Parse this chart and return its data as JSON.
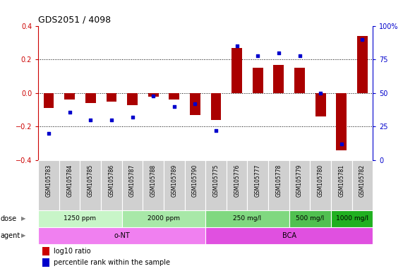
{
  "title": "GDS2051 / 4098",
  "samples": [
    "GSM105783",
    "GSM105784",
    "GSM105785",
    "GSM105786",
    "GSM105787",
    "GSM105788",
    "GSM105789",
    "GSM105790",
    "GSM105775",
    "GSM105776",
    "GSM105777",
    "GSM105778",
    "GSM105779",
    "GSM105780",
    "GSM105781",
    "GSM105782"
  ],
  "log10_ratio": [
    -0.09,
    -0.04,
    -0.06,
    -0.05,
    -0.07,
    -0.02,
    -0.04,
    -0.13,
    -0.16,
    0.27,
    0.15,
    0.17,
    0.15,
    -0.14,
    -0.34,
    0.34
  ],
  "percentile_rank": [
    20,
    36,
    30,
    30,
    32,
    48,
    40,
    42,
    22,
    85,
    78,
    80,
    78,
    50,
    12,
    90
  ],
  "dose_groups": [
    {
      "label": "1250 ppm",
      "start": 0,
      "end": 4,
      "color": "#c8f5c8"
    },
    {
      "label": "2000 ppm",
      "start": 4,
      "end": 8,
      "color": "#a8e8a8"
    },
    {
      "label": "250 mg/l",
      "start": 8,
      "end": 12,
      "color": "#80d880"
    },
    {
      "label": "500 mg/l",
      "start": 12,
      "end": 14,
      "color": "#50c050"
    },
    {
      "label": "1000 mg/l",
      "start": 14,
      "end": 16,
      "color": "#20b020"
    }
  ],
  "agent_groups": [
    {
      "label": "o-NT",
      "start": 0,
      "end": 8,
      "color": "#f080f0"
    },
    {
      "label": "BCA",
      "start": 8,
      "end": 16,
      "color": "#e050e0"
    }
  ],
  "ylim": [
    -0.4,
    0.4
  ],
  "yticks_left": [
    -0.4,
    -0.2,
    0.0,
    0.2,
    0.4
  ],
  "yticks_right": [
    0,
    25,
    50,
    75,
    100
  ],
  "bar_color": "#aa0000",
  "dot_color": "#0000cc",
  "label_area_color": "#d0d0d0",
  "legend_ratio_color": "#cc0000",
  "legend_pct_color": "#0000cc",
  "left_color": "#cc0000",
  "right_color": "#0000cc"
}
